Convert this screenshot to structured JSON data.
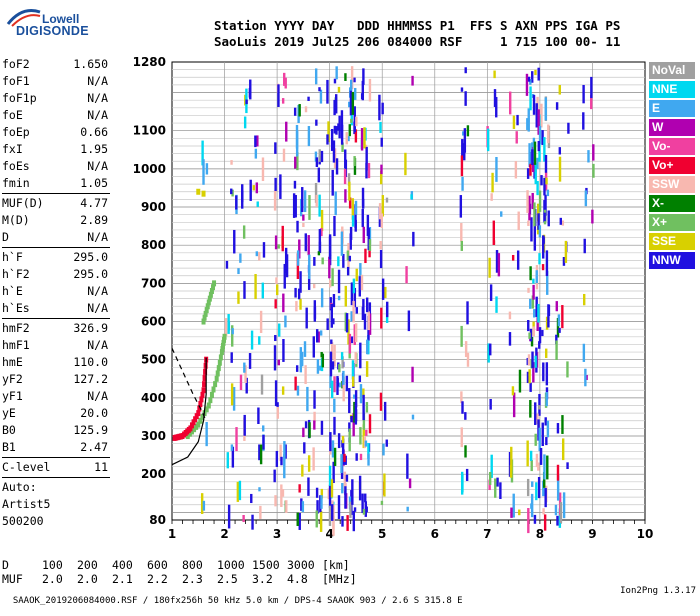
{
  "logo": {
    "line1": "Lowell",
    "line2": "DIGISONDE"
  },
  "header": {
    "line1": "Station YYYY DAY   DDD HHMMSS P1  FFS S AXN PPS IGA PS",
    "line2": "SaoLuis 2019 Jul25 206 084000 RSF     1 715 100 00- 11"
  },
  "params": {
    "group1": [
      {
        "label": "foF2",
        "value": "1.650"
      },
      {
        "label": "foF1",
        "value": "N/A"
      },
      {
        "label": "foF1p",
        "value": "N/A"
      },
      {
        "label": "foE",
        "value": "N/A"
      },
      {
        "label": "foEp",
        "value": "0.66"
      },
      {
        "label": "fxI",
        "value": "1.95"
      },
      {
        "label": "foEs",
        "value": "N/A"
      },
      {
        "label": "fmin",
        "value": "1.05"
      }
    ],
    "group2": [
      {
        "label": "MUF(D)",
        "value": "4.77"
      },
      {
        "label": "M(D)",
        "value": "2.89"
      },
      {
        "label": "D",
        "value": "N/A"
      }
    ],
    "group3": [
      {
        "label": "h`F",
        "value": "295.0"
      },
      {
        "label": "h`F2",
        "value": "295.0"
      },
      {
        "label": "h`E",
        "value": "N/A"
      },
      {
        "label": "h`Es",
        "value": "N/A"
      }
    ],
    "group4": [
      {
        "label": "hmF2",
        "value": "326.9"
      },
      {
        "label": "hmF1",
        "value": "N/A"
      },
      {
        "label": "hmE",
        "value": "110.0"
      },
      {
        "label": "yF2",
        "value": "127.2"
      },
      {
        "label": "yF1",
        "value": "N/A"
      },
      {
        "label": "yE",
        "value": "20.0"
      },
      {
        "label": "B0",
        "value": "125.9"
      },
      {
        "label": "B1",
        "value": "2.47"
      }
    ],
    "clevel": {
      "label": "C-level",
      "value": "11"
    },
    "auto": [
      "Auto:",
      "Artist5",
      "500200"
    ]
  },
  "legend": [
    {
      "label": "NoVal",
      "color": "#a0a0a0"
    },
    {
      "label": "NNE",
      "color": "#00d8f0"
    },
    {
      "label": "E",
      "color": "#40a8f0"
    },
    {
      "label": "W",
      "color": "#b000b0"
    },
    {
      "label": "Vo-",
      "color": "#f040a0"
    },
    {
      "label": "Vo+",
      "color": "#f00030"
    },
    {
      "label": "SSW",
      "color": "#f8b8b0"
    },
    {
      "label": "X-",
      "color": "#008000"
    },
    {
      "label": "X+",
      "color": "#70c060"
    },
    {
      "label": "SSE",
      "color": "#d8d000"
    },
    {
      "label": "NNW",
      "color": "#2010e0"
    }
  ],
  "chart_data": {
    "type": "scatter",
    "title": "",
    "xlabel": "",
    "ylabel": "",
    "xlim": [
      1,
      10
    ],
    "ylim": [
      80,
      1280
    ],
    "x_ticks": [
      "1",
      "2",
      "3",
      "4",
      "5",
      "6",
      "7",
      "8",
      "9",
      "10"
    ],
    "y_ticks": [
      "80",
      "200",
      "300",
      "400",
      "500",
      "600",
      "700",
      "800",
      "900",
      "1000",
      "1100",
      "1280"
    ],
    "grid": true,
    "trace_o_points": [
      [
        1.05,
        295
      ],
      [
        1.2,
        300
      ],
      [
        1.35,
        320
      ],
      [
        1.5,
        360
      ],
      [
        1.6,
        420
      ],
      [
        1.65,
        500
      ]
    ],
    "trace_x_points": [
      [
        1.3,
        300
      ],
      [
        1.5,
        330
      ],
      [
        1.7,
        380
      ],
      [
        1.85,
        450
      ],
      [
        1.95,
        520
      ],
      [
        2.0,
        560
      ]
    ],
    "es_trace_points": [
      [
        1.6,
        600
      ],
      [
        1.7,
        650
      ],
      [
        1.8,
        700
      ]
    ],
    "mirror_points": [
      [
        1.5,
        940
      ],
      [
        1.6,
        935
      ]
    ],
    "profile_curve": [
      [
        1.0,
        225
      ],
      [
        1.3,
        245
      ],
      [
        1.5,
        285
      ],
      [
        1.6,
        340
      ],
      [
        1.65,
        410
      ],
      [
        1.65,
        505
      ]
    ],
    "dashed_curve": [
      [
        1.0,
        530
      ],
      [
        1.2,
        470
      ],
      [
        1.4,
        410
      ],
      [
        1.55,
        370
      ],
      [
        1.65,
        340
      ]
    ]
  },
  "muf_table": {
    "d_label": "D",
    "d_values": [
      "100",
      "200",
      "400",
      "600",
      "800",
      "1000",
      "1500",
      "3000"
    ],
    "d_unit": "[km]",
    "muf_label": "MUF",
    "muf_values": [
      "2.0",
      "2.0",
      "2.1",
      "2.2",
      "2.3",
      "2.5",
      "3.2",
      "4.8"
    ],
    "muf_unit": "[MHz]"
  },
  "footer": {
    "left": "SAAOK_2019206084000.RSF / 180fx256h 50 kHz 5.0 km / DPS-4 SAAOK 903 / 2.6 S 315.8 E",
    "right": "Ion2Png 1.3.17"
  }
}
